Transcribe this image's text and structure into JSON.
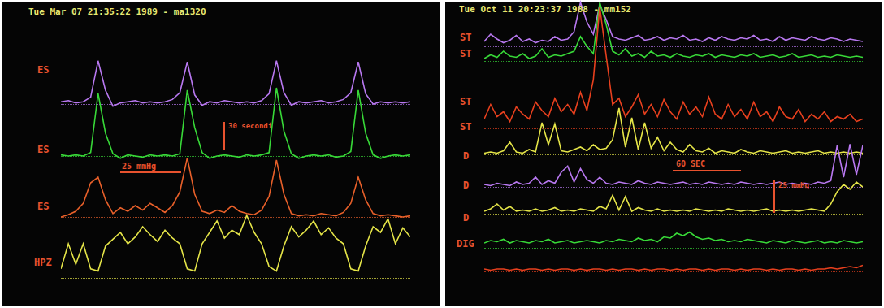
{
  "chart_data": [
    {
      "type": "line",
      "title": "Tue Mar 07 21:35:22 1989 - ma1320",
      "tick_labels": false,
      "annotations": [
        "25 mmHg",
        "30 secondi"
      ],
      "series": [
        {
          "name": "ES",
          "color": "#b878f0",
          "ylim": [
            -5,
            45
          ],
          "values": [
            2,
            3,
            1,
            2,
            6,
            38,
            12,
            -2,
            1,
            2,
            3,
            1,
            2,
            1,
            2,
            4,
            10,
            37,
            8,
            -1,
            2,
            1,
            3,
            2,
            1,
            2,
            1,
            3,
            9,
            38,
            10,
            -1,
            2,
            1,
            2,
            3,
            1,
            2,
            4,
            10,
            37,
            9,
            0,
            2,
            1,
            2,
            1,
            2
          ]
        },
        {
          "name": "ES",
          "color": "#38d838",
          "ylim": [
            -5,
            65
          ],
          "values": [
            1,
            0,
            1,
            0,
            3,
            55,
            20,
            2,
            -2,
            1,
            0,
            -1,
            1,
            0,
            1,
            0,
            2,
            58,
            25,
            3,
            -2,
            0,
            1,
            0,
            -1,
            1,
            0,
            1,
            3,
            60,
            22,
            2,
            -2,
            0,
            1,
            0,
            1,
            -1,
            0,
            4,
            58,
            20,
            1,
            -2,
            0,
            1,
            0,
            1
          ]
        },
        {
          "name": "ES",
          "color": "#e8602a",
          "ylim": [
            -5,
            60
          ],
          "values": [
            0,
            2,
            5,
            12,
            30,
            35,
            15,
            3,
            8,
            5,
            10,
            6,
            12,
            8,
            4,
            10,
            22,
            52,
            20,
            5,
            3,
            6,
            4,
            10,
            5,
            3,
            2,
            6,
            18,
            50,
            20,
            3,
            1,
            2,
            1,
            3,
            2,
            1,
            4,
            12,
            35,
            15,
            3,
            1,
            2,
            1,
            0,
            1
          ]
        },
        {
          "name": "HPZ",
          "color": "#e4e448",
          "ylim": [
            0,
            65
          ],
          "values": [
            8,
            30,
            12,
            30,
            8,
            6,
            28,
            34,
            40,
            30,
            36,
            45,
            38,
            32,
            42,
            35,
            30,
            8,
            6,
            30,
            40,
            50,
            35,
            42,
            38,
            55,
            40,
            30,
            10,
            6,
            28,
            45,
            36,
            42,
            50,
            38,
            44,
            35,
            30,
            8,
            6,
            28,
            45,
            40,
            52,
            30,
            44,
            36
          ]
        }
      ]
    },
    {
      "type": "line",
      "title": "Tue Oct 11 20:23:37 1988 - mm152",
      "tick_labels": false,
      "annotations": [
        "60 SEC",
        "25 mmHg"
      ],
      "series": [
        {
          "name": "ST",
          "color": "#b878f0",
          "ylim": [
            -5,
            40
          ],
          "values": [
            4,
            10,
            6,
            3,
            5,
            9,
            4,
            6,
            3,
            5,
            4,
            8,
            5,
            6,
            12,
            36,
            20,
            10,
            34,
            22,
            8,
            6,
            5,
            7,
            9,
            5,
            6,
            8,
            5,
            7,
            6,
            9,
            5,
            6,
            4,
            7,
            5,
            8,
            6,
            5,
            7,
            6,
            9,
            5,
            6,
            4,
            8,
            5,
            7,
            6,
            5,
            8,
            6,
            5,
            7,
            6,
            4,
            6,
            5,
            4
          ]
        },
        {
          "name": "ST",
          "color": "#38d838",
          "ylim": [
            -5,
            50
          ],
          "values": [
            2,
            5,
            3,
            8,
            4,
            3,
            6,
            2,
            4,
            10,
            3,
            5,
            4,
            6,
            8,
            20,
            12,
            6,
            48,
            30,
            8,
            5,
            10,
            4,
            6,
            3,
            8,
            4,
            5,
            3,
            6,
            4,
            3,
            5,
            4,
            6,
            3,
            5,
            4,
            3,
            5,
            4,
            6,
            3,
            4,
            5,
            3,
            4,
            6,
            3,
            4,
            5,
            3,
            4,
            3,
            5,
            4,
            3,
            4,
            3
          ]
        },
        {
          "name": "ST",
          "color": "#e8401e",
          "ylim": [
            -5,
            105
          ],
          "values": [
            8,
            20,
            10,
            14,
            6,
            18,
            12,
            8,
            22,
            15,
            10,
            25,
            14,
            20,
            12,
            30,
            15,
            40,
            100,
            60,
            20,
            25,
            10,
            18,
            28,
            12,
            20,
            10,
            24,
            14,
            8,
            22,
            12,
            18,
            10,
            26,
            12,
            8,
            20,
            10,
            16,
            8,
            22,
            10,
            14,
            6,
            18,
            10,
            8,
            16,
            6,
            12,
            8,
            14,
            6,
            10,
            8,
            12,
            6,
            8
          ]
        },
        {
          "name": "ST",
          "color": "#e4e448",
          "ylim": [
            -5,
            42
          ],
          "values": [
            1,
            2,
            1,
            3,
            10,
            2,
            1,
            4,
            2,
            26,
            8,
            25,
            3,
            2,
            4,
            6,
            3,
            8,
            4,
            5,
            12,
            38,
            6,
            30,
            4,
            26,
            5,
            14,
            3,
            10,
            4,
            2,
            8,
            3,
            2,
            5,
            1,
            3,
            2,
            1,
            4,
            2,
            1,
            3,
            2,
            1,
            2,
            3,
            1,
            2,
            1,
            2,
            3,
            1,
            2,
            1,
            2,
            1,
            2,
            1
          ]
        },
        {
          "name": "D",
          "color": "#b878f0",
          "ylim": [
            -5,
            38
          ],
          "values": [
            2,
            1,
            3,
            2,
            1,
            4,
            2,
            3,
            8,
            2,
            5,
            3,
            12,
            17,
            4,
            15,
            6,
            3,
            8,
            3,
            2,
            4,
            3,
            2,
            5,
            3,
            2,
            4,
            3,
            2,
            3,
            4,
            2,
            3,
            2,
            4,
            3,
            2,
            3,
            2,
            4,
            3,
            2,
            3,
            2,
            3,
            4,
            2,
            3,
            2,
            3,
            2,
            4,
            3,
            5,
            34,
            8,
            35,
            10,
            34
          ]
        },
        {
          "name": "D",
          "color": "#e4e448",
          "ylim": [
            -5,
            30
          ],
          "values": [
            2,
            4,
            8,
            3,
            6,
            2,
            3,
            2,
            4,
            2,
            3,
            5,
            2,
            3,
            2,
            4,
            3,
            2,
            6,
            4,
            15,
            3,
            14,
            2,
            5,
            3,
            2,
            4,
            2,
            3,
            2,
            3,
            2,
            4,
            3,
            2,
            3,
            2,
            4,
            3,
            2,
            3,
            2,
            3,
            4,
            2,
            3,
            2,
            3,
            2,
            3,
            4,
            3,
            2,
            8,
            18,
            24,
            20,
            26,
            22
          ]
        },
        {
          "name": "D",
          "color": "#38d838",
          "ylim": [
            -5,
            16
          ],
          "values": [
            4,
            6,
            5,
            7,
            4,
            6,
            5,
            4,
            6,
            5,
            7,
            4,
            5,
            6,
            4,
            5,
            6,
            5,
            4,
            6,
            5,
            7,
            6,
            5,
            8,
            6,
            7,
            5,
            9,
            8,
            12,
            10,
            13,
            9,
            7,
            8,
            6,
            7,
            5,
            6,
            5,
            7,
            6,
            5,
            4,
            6,
            5,
            4,
            6,
            5,
            4,
            5,
            6,
            4,
            5,
            4,
            6,
            5,
            4,
            5
          ]
        },
        {
          "name": "DIG",
          "color": "#e8401e",
          "ylim": [
            -3,
            8
          ],
          "values": [
            2,
            1,
            2,
            2,
            1,
            2,
            1,
            2,
            2,
            1,
            2,
            1,
            2,
            2,
            1,
            2,
            1,
            2,
            2,
            1,
            2,
            1,
            2,
            2,
            1,
            2,
            1,
            2,
            2,
            1,
            2,
            1,
            2,
            2,
            1,
            2,
            1,
            2,
            2,
            1,
            2,
            1,
            2,
            2,
            1,
            2,
            1,
            2,
            2,
            1,
            2,
            1,
            2,
            2,
            3,
            2,
            3,
            4,
            3,
            5
          ]
        }
      ]
    }
  ]
}
